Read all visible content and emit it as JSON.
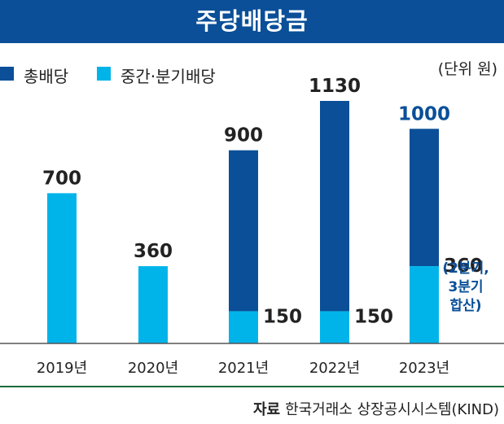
{
  "title": "주당배당금",
  "unit": "(단위 원)",
  "source": {
    "label": "자료",
    "text": "한국거래소 상장공시시스템(KIND)"
  },
  "colors": {
    "total": "#0a4f98",
    "interim": "#00b4ea",
    "label_dark": "#222222",
    "label_blue": "#0a4f98"
  },
  "chart_data": {
    "type": "bar",
    "categories": [
      "2019년",
      "2020년",
      "2021년",
      "2022년",
      "2023년"
    ],
    "series": [
      {
        "name": "총배당",
        "values": [
          700,
          360,
          900,
          1130,
          1000
        ]
      },
      {
        "name": "중간·분기배당",
        "values": [
          700,
          360,
          150,
          150,
          360
        ]
      }
    ],
    "total_labels": [
      "700",
      "360",
      "900",
      "1130",
      "1000"
    ],
    "interim_labels": [
      "",
      "",
      "150",
      "150",
      "360"
    ],
    "annotation": [
      "(2분기,",
      "3분기",
      "합산)"
    ],
    "ylim": [
      0,
      1200
    ],
    "grid": false
  }
}
